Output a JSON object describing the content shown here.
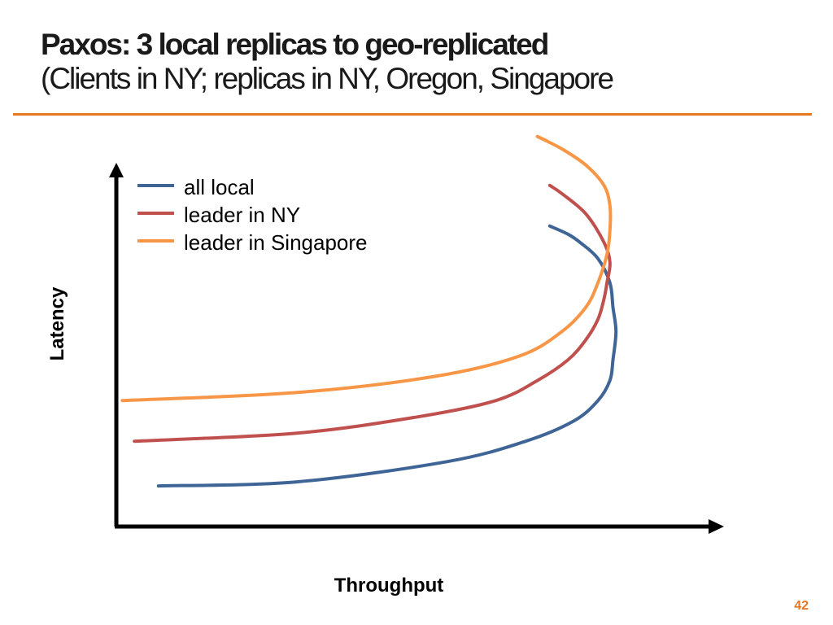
{
  "slide": {
    "title": "Paxos: 3 local replicas to geo-replicated",
    "subtitle": "(Clients in NY; replicas in NY, Oregon, Singapore",
    "page_number": "42",
    "accent_color": "#e87722"
  },
  "chart_data": {
    "type": "line",
    "title": "",
    "xlabel": "Throughput",
    "ylabel": "Latency",
    "x_ticks": "none",
    "y_ticks": "none",
    "xlim": [
      0,
      100
    ],
    "ylim": [
      0,
      100
    ],
    "grid": false,
    "legend_position": "top-left",
    "series": [
      {
        "name": "all local",
        "color": "#3e6596",
        "points": [
          [
            7,
            10
          ],
          [
            30,
            11
          ],
          [
            55,
            16
          ],
          [
            68,
            21
          ],
          [
            76,
            26
          ],
          [
            80,
            31
          ],
          [
            82,
            36
          ],
          [
            82.5,
            41
          ],
          [
            83,
            48
          ],
          [
            82.5,
            54
          ],
          [
            82,
            60
          ],
          [
            80,
            66
          ],
          [
            77,
            70
          ],
          [
            75,
            72
          ],
          [
            72,
            74
          ]
        ]
      },
      {
        "name": "leader in NY",
        "color": "#c0504d",
        "points": [
          [
            3,
            21
          ],
          [
            30,
            23
          ],
          [
            50,
            27
          ],
          [
            63,
            31
          ],
          [
            70,
            36
          ],
          [
            75,
            41
          ],
          [
            78,
            46
          ],
          [
            80,
            51
          ],
          [
            81,
            56
          ],
          [
            81.5,
            60
          ],
          [
            82,
            65
          ],
          [
            81,
            70
          ],
          [
            78,
            77
          ],
          [
            74,
            82
          ],
          [
            72,
            84
          ]
        ]
      },
      {
        "name": "leader in Singapore",
        "color": "#f79646",
        "points": [
          [
            1,
            31
          ],
          [
            30,
            33
          ],
          [
            53,
            37
          ],
          [
            67,
            42
          ],
          [
            74,
            48
          ],
          [
            78,
            54
          ],
          [
            80,
            60
          ],
          [
            81.5,
            67
          ],
          [
            82,
            73
          ],
          [
            82,
            79
          ],
          [
            81,
            84
          ],
          [
            78,
            89
          ],
          [
            74,
            93
          ],
          [
            70,
            96
          ],
          [
            71.5,
            95
          ]
        ]
      }
    ]
  }
}
